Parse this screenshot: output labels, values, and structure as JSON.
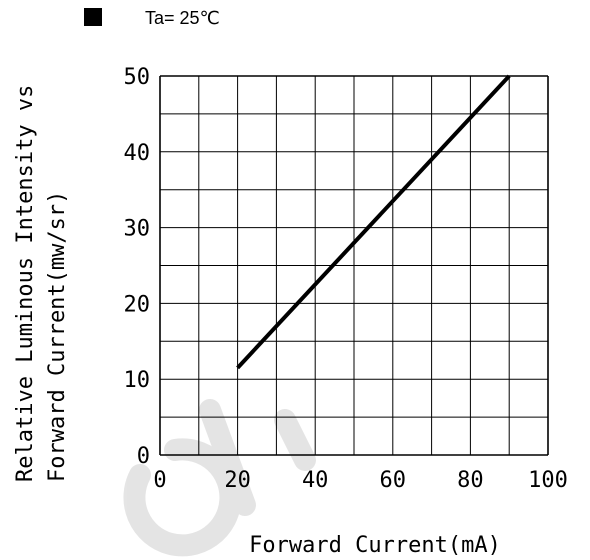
{
  "chart_data": {
    "type": "line",
    "legend": {
      "marker": "black-square",
      "text": "Ta= 25℃"
    },
    "ylabel_line1": "Relative Luminous Intensity vs",
    "ylabel_line2": "Forward Current(mw/sr)",
    "xlabel": "Forward Current(mA)",
    "xlim": [
      0,
      100
    ],
    "ylim": [
      0,
      50
    ],
    "x_ticks": [
      "0",
      "20",
      "40",
      "60",
      "80",
      "100"
    ],
    "y_ticks": [
      "0",
      "10",
      "20",
      "30",
      "40",
      "50"
    ],
    "x_tick_values": [
      0,
      20,
      40,
      60,
      80,
      100
    ],
    "y_tick_values": [
      0,
      10,
      20,
      30,
      40,
      50
    ],
    "x_grid_step": 10,
    "y_grid_step": 5,
    "grid": true,
    "series": [
      {
        "x": [
          20,
          90
        ],
        "y": [
          11.5,
          50
        ],
        "color": "#000000"
      }
    ],
    "watermark": "GI"
  }
}
